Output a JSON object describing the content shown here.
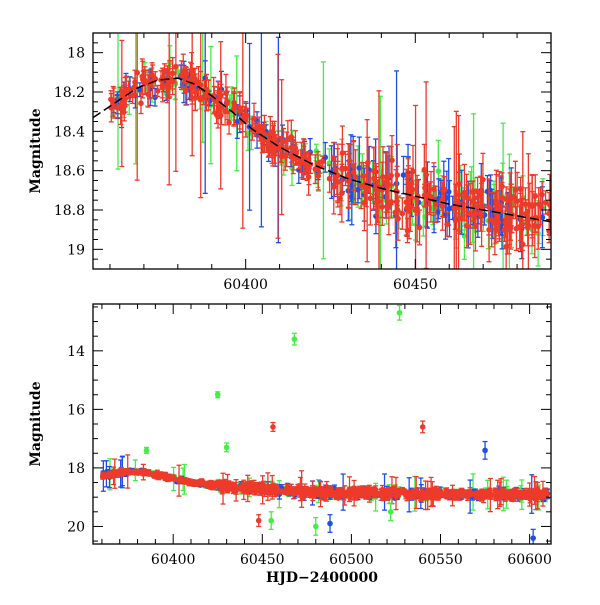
{
  "colors": {
    "green": "#44ee44",
    "blue": "#1f4fe8",
    "red": "#ee3a2a",
    "frame": "#000000",
    "model": "#000000"
  },
  "chart_data": [
    {
      "type": "scatter",
      "panel": "top",
      "xlabel": "",
      "ylabel": "Magnitude",
      "xlim": [
        60355,
        60490
      ],
      "ylim": [
        19.1,
        17.9
      ],
      "y_inverted": true,
      "xticks": [
        60400,
        60450
      ],
      "yticks": [
        18,
        18.2,
        18.4,
        18.6,
        18.8,
        19
      ],
      "ytick_labels": [
        "18",
        "18.2",
        "18.4",
        "18.6",
        "18.8",
        "19"
      ],
      "xtick_labels": [
        "60400",
        "60450"
      ],
      "model_curve": {
        "x": [
          60355,
          60362,
          60368,
          60374,
          60380,
          60385,
          60390,
          60396,
          60402,
          60410,
          60420,
          60430,
          60440,
          60450,
          60460,
          60470,
          60480,
          60490
        ],
        "y": [
          18.33,
          18.25,
          18.18,
          18.14,
          18.13,
          18.16,
          18.22,
          18.3,
          18.39,
          18.48,
          18.57,
          18.64,
          18.69,
          18.73,
          18.77,
          18.8,
          18.83,
          18.86
        ]
      },
      "series_colors": [
        "green",
        "blue",
        "red"
      ]
    },
    {
      "type": "scatter",
      "panel": "bottom",
      "xlabel": "HJD−2400000",
      "ylabel": "Magnitude",
      "xlim": [
        60355,
        60612
      ],
      "ylim": [
        20.6,
        12.4
      ],
      "y_inverted": true,
      "xticks": [
        60400,
        60450,
        60500,
        60550,
        60600
      ],
      "xtick_labels": [
        "60400",
        "60450",
        "60500",
        "60550",
        "60600"
      ],
      "yticks": [
        14,
        16,
        18,
        20
      ],
      "ytick_labels": [
        "14",
        "16",
        "18",
        "20"
      ],
      "outliers": [
        {
          "series": "green",
          "x": 60527,
          "y": 12.7,
          "err": 0.25
        },
        {
          "series": "green",
          "x": 60468,
          "y": 13.6,
          "err": 0.2
        },
        {
          "series": "green",
          "x": 60425,
          "y": 15.5,
          "err": 0.1
        },
        {
          "series": "red",
          "x": 60456,
          "y": 16.6,
          "err": 0.15
        },
        {
          "series": "red",
          "x": 60540,
          "y": 16.6,
          "err": 0.2
        },
        {
          "series": "blue",
          "x": 60575,
          "y": 17.4,
          "err": 0.3
        },
        {
          "series": "green",
          "x": 60385,
          "y": 17.4,
          "err": 0.1
        },
        {
          "series": "green",
          "x": 60430,
          "y": 17.3,
          "err": 0.15
        },
        {
          "series": "green",
          "x": 60455,
          "y": 19.8,
          "err": 0.3
        },
        {
          "series": "green",
          "x": 60480,
          "y": 20.0,
          "err": 0.3
        },
        {
          "series": "blue",
          "x": 60488,
          "y": 19.9,
          "err": 0.3
        },
        {
          "series": "blue",
          "x": 60602,
          "y": 20.4,
          "err": 0.3
        },
        {
          "series": "green",
          "x": 60522,
          "y": 19.5,
          "err": 0.3
        },
        {
          "series": "red",
          "x": 60448,
          "y": 19.8,
          "err": 0.2
        }
      ],
      "series_colors": [
        "green",
        "blue",
        "red"
      ]
    }
  ]
}
